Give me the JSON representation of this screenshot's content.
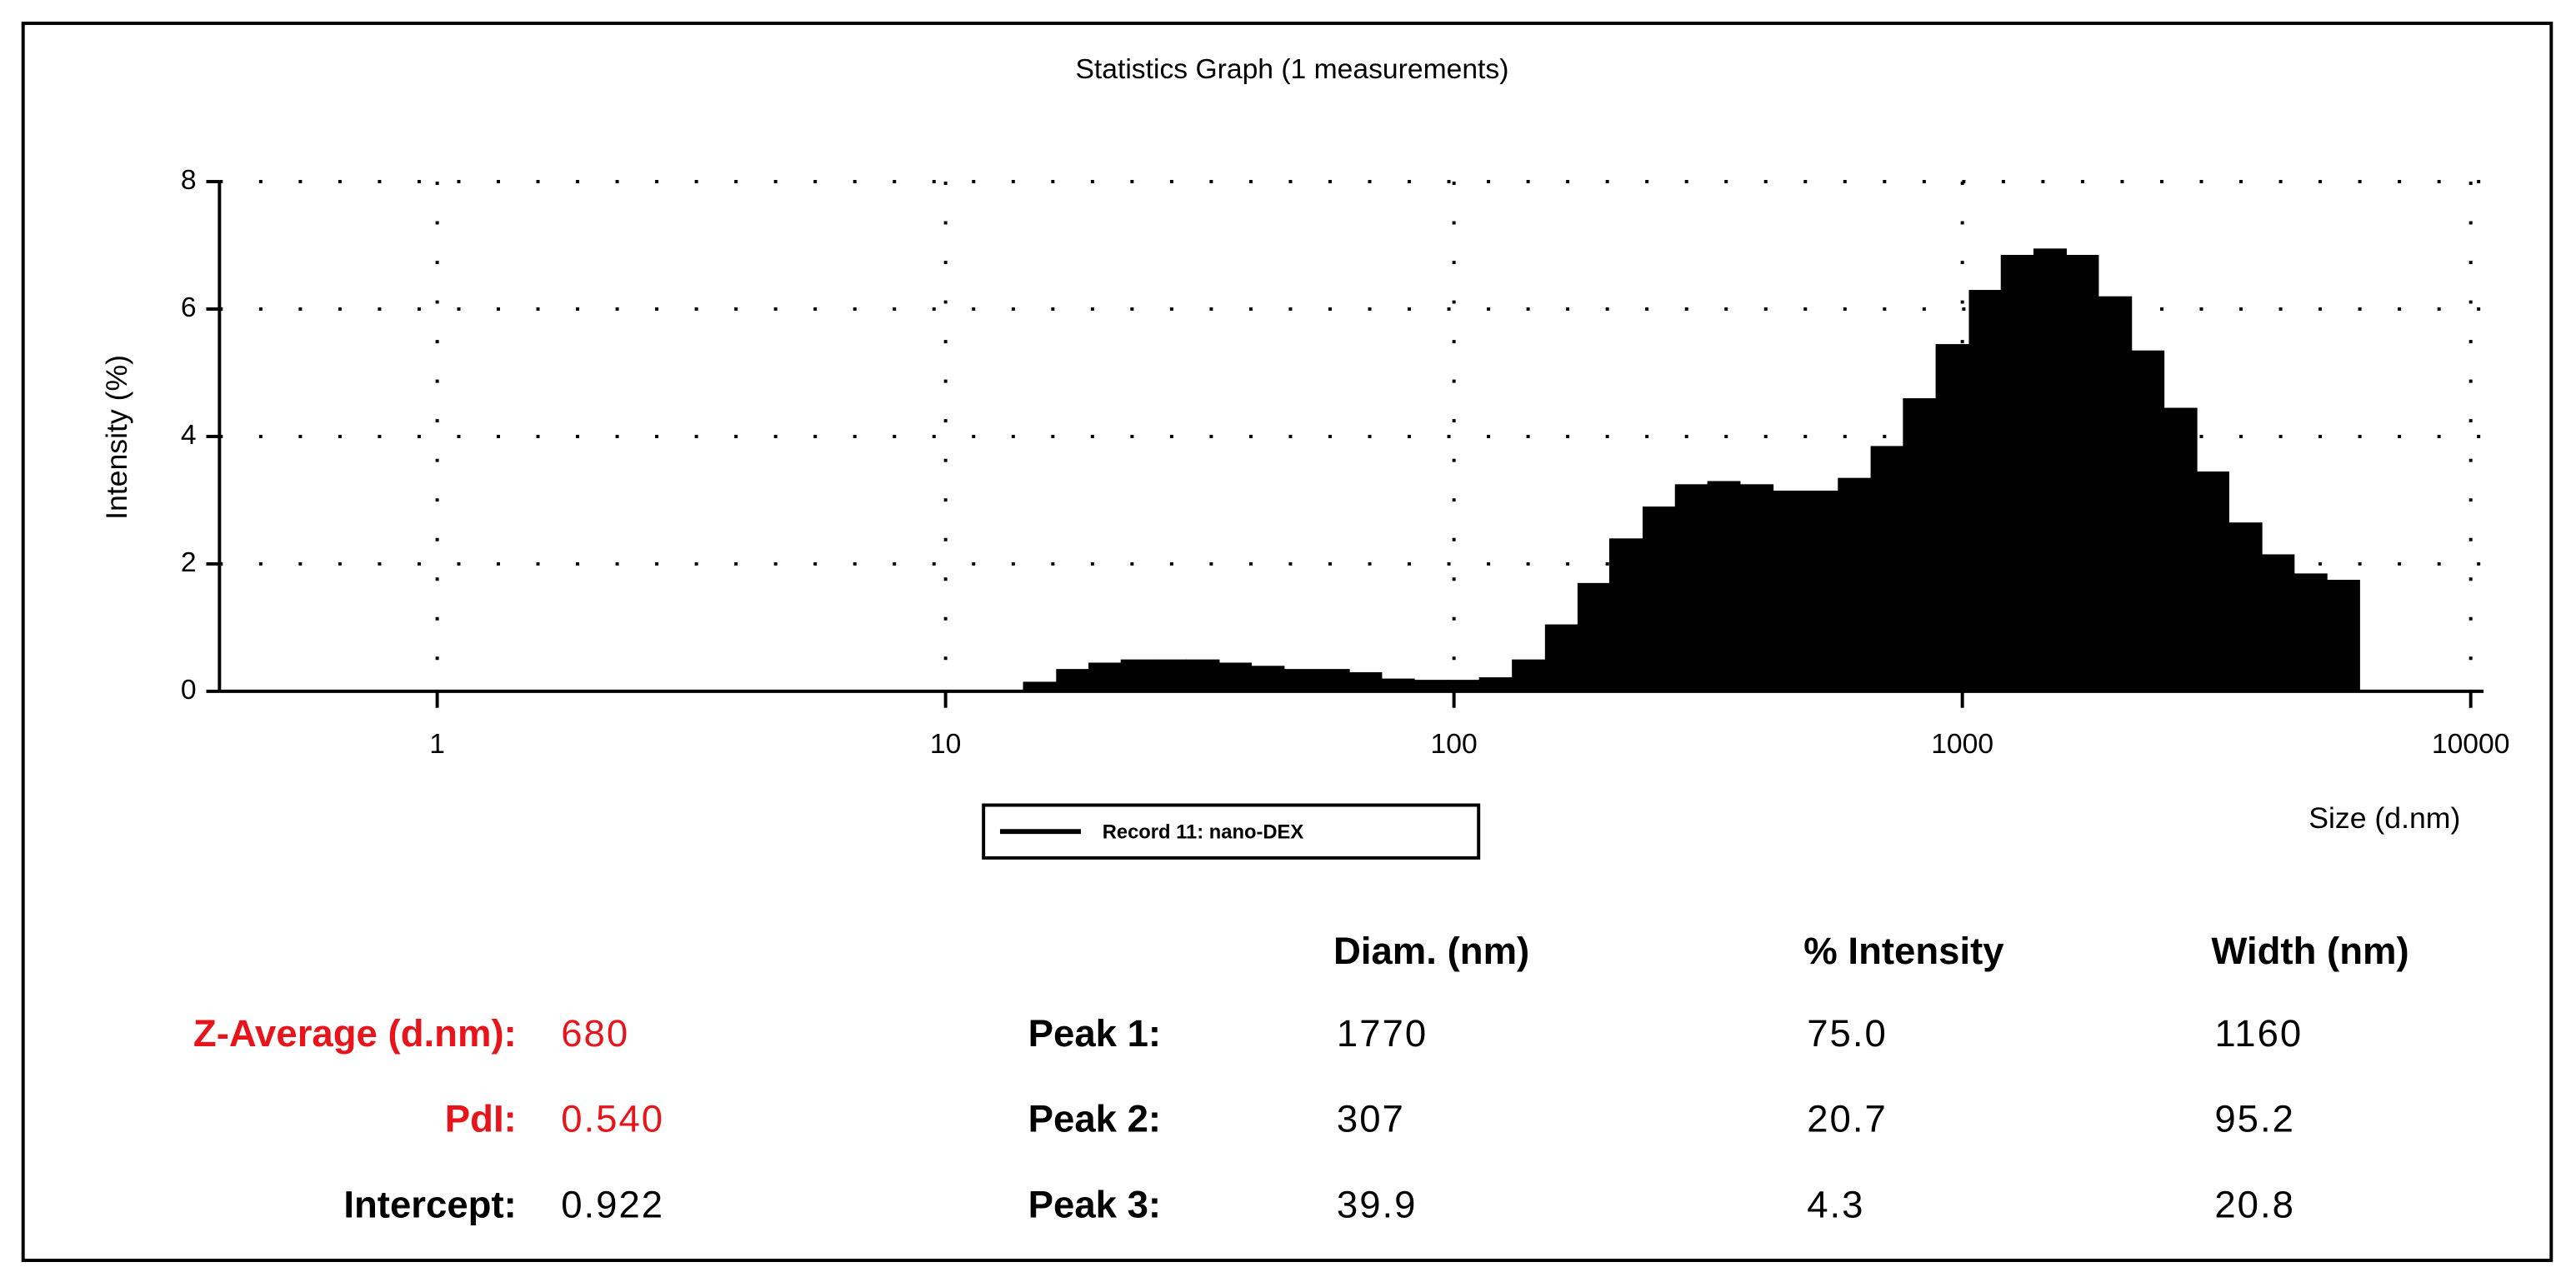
{
  "chart_data": {
    "type": "histogram",
    "title": "Statistics Graph (1 measurements)",
    "x_label": "Size (d.nm)",
    "y_label": "Intensity (%)",
    "color": "#000000",
    "log_x": true,
    "grid": true,
    "xlim": [
      0.373,
      10600
    ],
    "ylim": [
      0,
      8
    ],
    "xticks": [
      1,
      10,
      100,
      1000,
      10000
    ],
    "yticks": [
      0,
      2,
      4,
      6,
      8
    ],
    "series": [
      {
        "name": "Record 11: nano-DEX",
        "color": "#000000"
      }
    ],
    "bins": [
      14.2,
      16.5,
      19.1,
      22.1,
      25.6,
      29.7,
      34.5,
      39.9,
      46.3,
      53.6,
      62.2,
      72.0,
      83.5,
      96.8,
      112,
      130,
      151,
      175,
      202,
      235,
      272,
      315,
      365,
      424,
      491,
      569,
      660,
      764,
      886,
      1030,
      1190,
      1380,
      1600,
      1850,
      2150,
      2490,
      2890,
      3340,
      3880,
      4490,
      5210,
      6040
    ],
    "values": [
      0.15,
      0.35,
      0.45,
      0.5,
      0.5,
      0.5,
      0.45,
      0.4,
      0.35,
      0.35,
      0.3,
      0.2,
      0.18,
      0.18,
      0.22,
      0.5,
      1.05,
      1.7,
      2.4,
      2.9,
      3.25,
      3.3,
      3.25,
      3.15,
      3.15,
      3.35,
      3.85,
      4.6,
      5.45,
      6.3,
      6.85,
      6.95,
      6.85,
      6.2,
      5.35,
      4.45,
      3.45,
      2.65,
      2.15,
      1.85,
      1.75
    ]
  },
  "results": {
    "summary": [
      {
        "label": "Z-Average (d.nm):",
        "value": "680"
      },
      {
        "label": "PdI:",
        "value": "0.540"
      },
      {
        "label": "Intercept:",
        "value": "0.922"
      }
    ],
    "columns": [
      "Diam. (nm)",
      "% Intensity",
      "Width (nm)"
    ],
    "peaks": [
      {
        "label": "Peak 1:",
        "cells": [
          "1770",
          "75.0",
          "1160"
        ]
      },
      {
        "label": "Peak 2:",
        "cells": [
          "307",
          "20.7",
          "95.2"
        ]
      },
      {
        "label": "Peak 3:",
        "cells": [
          "39.9",
          "4.3",
          "20.8"
        ]
      }
    ]
  }
}
